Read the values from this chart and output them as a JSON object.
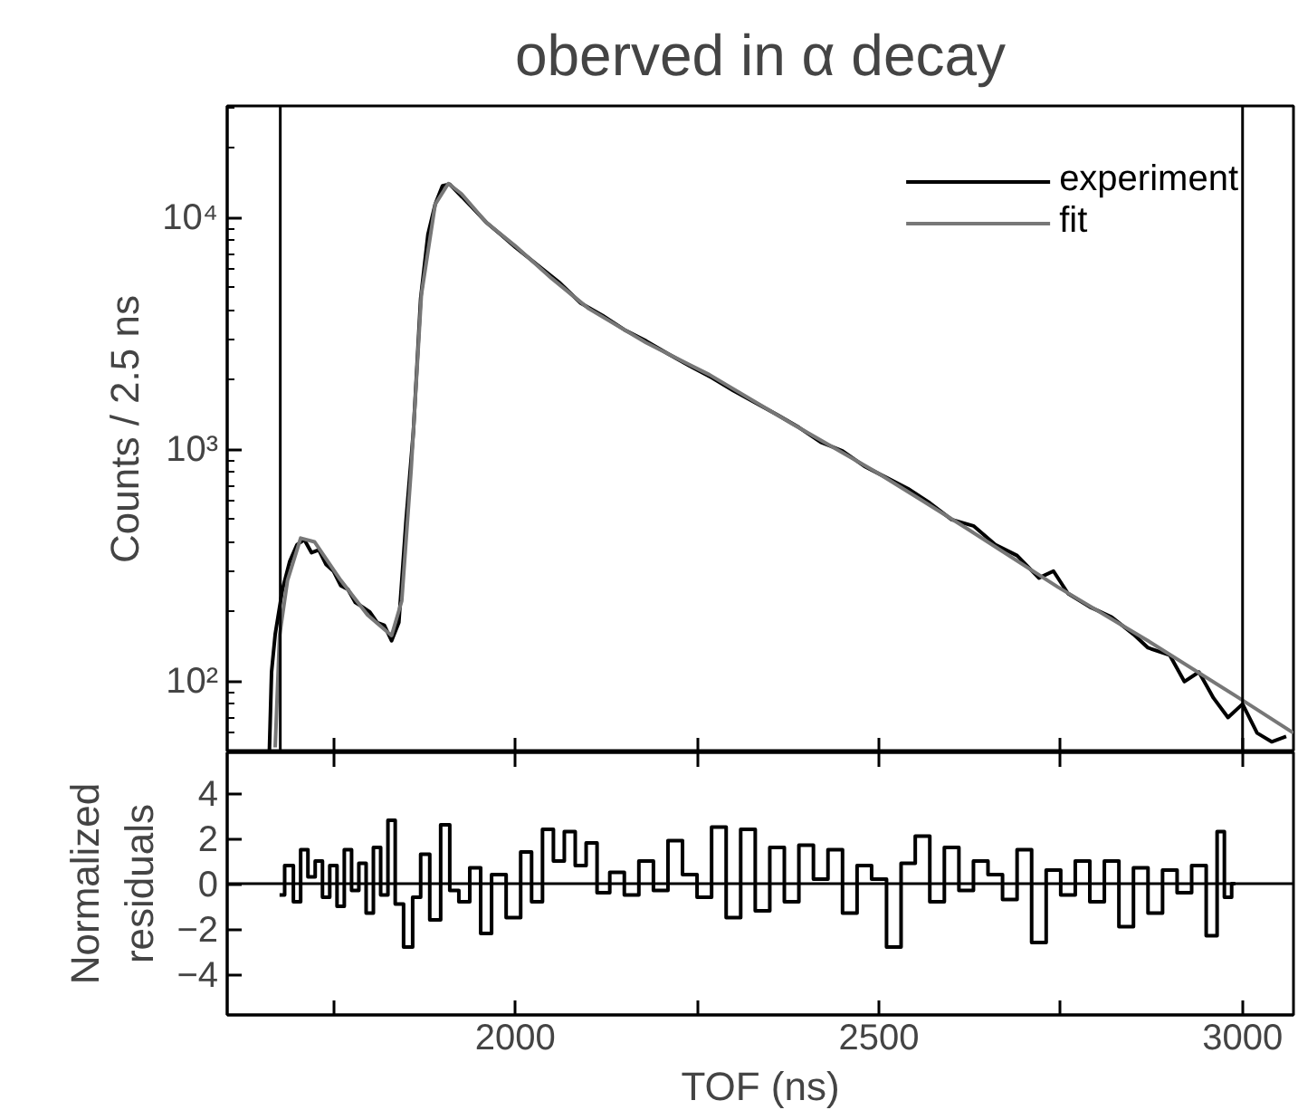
{
  "chart_data": [
    {
      "type": "line",
      "title": "oberved in α decay",
      "ylabel": "Counts / 2.5 ns",
      "log": "y",
      "grid": false,
      "legend": "top right",
      "tick_labels": "y",
      "line_style": "solid",
      "xlim": [
        1604,
        3070
      ],
      "xticks": [
        {
          "value": 1750,
          "label": null
        },
        {
          "value": 2000,
          "label": null
        },
        {
          "value": 2250,
          "label": null
        },
        {
          "value": 2500,
          "label": null
        },
        {
          "value": 2750,
          "label": null
        },
        {
          "value": 3000,
          "label": null
        }
      ],
      "ylim": [
        49.5,
        30500
      ],
      "yticks": [
        {
          "value": 100,
          "label": "10²"
        },
        {
          "value": 1000,
          "label": "10³"
        },
        {
          "value": 10000,
          "label": "10⁴"
        }
      ],
      "ref_lines": [
        {
          "axis": "x",
          "value": 1677,
          "color": "#000000"
        },
        {
          "axis": "x",
          "value": 3000,
          "color": "#000000"
        }
      ],
      "series": [
        {
          "name": "experiment",
          "color": "#000000",
          "x": [
            1662,
            1665,
            1670,
            1680,
            1690,
            1700,
            1710,
            1720,
            1730,
            1740,
            1750,
            1760,
            1770,
            1780,
            1790,
            1800,
            1810,
            1820,
            1830,
            1840,
            1850,
            1860,
            1870,
            1880,
            1890,
            1900,
            1910,
            1920,
            1940,
            1960,
            1980,
            2000,
            2030,
            2060,
            2090,
            2120,
            2150,
            2180,
            2210,
            2240,
            2270,
            2300,
            2330,
            2360,
            2390,
            2420,
            2450,
            2480,
            2510,
            2540,
            2570,
            2600,
            2630,
            2660,
            2690,
            2720,
            2740,
            2760,
            2790,
            2820,
            2850,
            2870,
            2900,
            2920,
            2940,
            2960,
            2980,
            3000,
            3020,
            3040,
            3060
          ],
          "values": [
            50,
            110,
            160,
            250,
            330,
            390,
            410,
            360,
            370,
            320,
            300,
            260,
            250,
            220,
            210,
            200,
            180,
            175,
            150,
            180,
            500,
            1200,
            4500,
            8500,
            11500,
            13800,
            14000,
            13000,
            11200,
            9600,
            8500,
            7500,
            6300,
            5300,
            4300,
            3800,
            3300,
            2950,
            2600,
            2300,
            2050,
            1800,
            1600,
            1420,
            1250,
            1080,
            990,
            850,
            760,
            680,
            590,
            500,
            470,
            390,
            350,
            280,
            300,
            240,
            210,
            190,
            160,
            140,
            130,
            100,
            110,
            85,
            70,
            80,
            60,
            55,
            58
          ]
        },
        {
          "name": "fit",
          "color": "#777777",
          "x": [
            1670,
            1676,
            1687,
            1705,
            1724,
            1760,
            1797,
            1830,
            1844,
            1857,
            1871,
            1890,
            1908,
            1926,
            1960,
            2000,
            2050,
            2101,
            2180,
            2267,
            2380,
            2497,
            2620,
            2746,
            2870,
            2995,
            3070
          ],
          "values": [
            52,
            158,
            274,
            416,
            401,
            274,
            194,
            158,
            223,
            830,
            4680,
            11480,
            14100,
            12740,
            9600,
            7590,
            5500,
            4070,
            2900,
            2110,
            1300,
            800,
            460,
            256,
            150,
            85,
            60
          ]
        }
      ]
    },
    {
      "type": "step",
      "ylabel": "Normalized\nresiduals",
      "xlabel": "TOF (ns)",
      "grid": false,
      "xlim": [
        1604,
        3070
      ],
      "xticks": [
        {
          "value": 1750,
          "label": null
        },
        2000,
        {
          "value": 2250,
          "label": null
        },
        2500,
        {
          "value": 2750,
          "label": null
        },
        3000
      ],
      "ylim": [
        -5.8,
        5.8
      ],
      "yticks": [
        -4,
        -2,
        0,
        2,
        4
      ],
      "ref_lines": [
        {
          "axis": "y",
          "value": 0,
          "color": "#000000"
        }
      ],
      "series": [
        {
          "color": "#000000",
          "x": [
            1676,
            1690,
            1700,
            1710,
            1720,
            1730,
            1740,
            1750,
            1760,
            1770,
            1780,
            1790,
            1800,
            1810,
            1820,
            1830,
            1840,
            1853,
            1865,
            1875,
            1890,
            1905,
            1915,
            1930,
            1945,
            1960,
            1975,
            2000,
            2015,
            2030,
            2045,
            2060,
            2075,
            2090,
            2105,
            2120,
            2140,
            2160,
            2180,
            2200,
            2220,
            2240,
            2260,
            2280,
            2300,
            2320,
            2340,
            2360,
            2380,
            2400,
            2420,
            2440,
            2460,
            2480,
            2500,
            2521,
            2540,
            2560,
            2580,
            2600,
            2620,
            2640,
            2660,
            2680,
            2700,
            2720,
            2740,
            2760,
            2780,
            2800,
            2820,
            2840,
            2860,
            2880,
            2900,
            2920,
            2940,
            2960,
            2970,
            2980,
            2990
          ],
          "values": [
            -0.5,
            0.8,
            -0.8,
            1.5,
            0.3,
            1.0,
            -0.6,
            0.8,
            -1.0,
            1.5,
            -0.3,
            0.9,
            -1.3,
            1.6,
            -0.5,
            2.8,
            -0.9,
            -2.8,
            -0.6,
            1.3,
            -1.6,
            2.6,
            -0.3,
            -0.8,
            0.7,
            -2.2,
            0.4,
            -1.5,
            1.4,
            -0.8,
            2.4,
            1.0,
            2.3,
            0.8,
            1.8,
            -0.4,
            0.5,
            -0.5,
            1.0,
            -0.3,
            1.9,
            0.4,
            -0.6,
            2.5,
            -1.5,
            2.4,
            -1.2,
            1.6,
            -0.8,
            1.7,
            0.2,
            1.5,
            -1.3,
            0.8,
            0.2,
            -2.8,
            0.9,
            2.1,
            -0.8,
            1.6,
            -0.3,
            1.0,
            0.4,
            -0.7,
            1.5,
            -2.6,
            0.6,
            -0.5,
            1.0,
            -0.8,
            1.0,
            -1.9,
            0.7,
            -1.3,
            0.6,
            -0.4,
            0.8,
            -2.3,
            2.3,
            -0.6,
            0
          ]
        }
      ]
    }
  ]
}
